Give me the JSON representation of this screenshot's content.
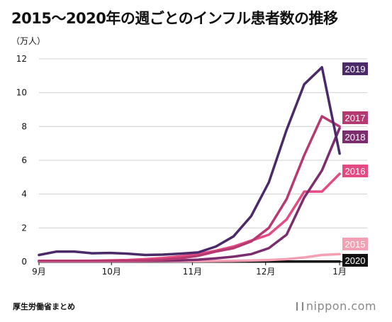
{
  "page": {
    "title": "2015〜2020年の週ごとのインフル患者数の推移",
    "source": "厚生労働省まとめ",
    "brand": "nippon.com"
  },
  "chart_data": {
    "type": "line",
    "title": "2015〜2020年の週ごとのインフル患者数の推移",
    "ylabel": "（万人）",
    "xlabel": "",
    "ylim": [
      0,
      12
    ],
    "yticks": [
      0,
      2,
      4,
      6,
      8,
      10,
      12
    ],
    "xlim": [
      0,
      20
    ],
    "xticks": [
      {
        "label": "9月",
        "x": 0
      },
      {
        "label": "10月",
        "x": 4.7
      },
      {
        "label": "11月",
        "x": 9.95
      },
      {
        "label": "12月",
        "x": 14.7
      },
      {
        "label": "1月",
        "x": 19.5
      }
    ],
    "grid": "horizontal",
    "series": [
      {
        "name": "2019",
        "color": "#4a2a68",
        "values": [
          0.4,
          0.6,
          0.6,
          0.5,
          0.52,
          0.48,
          0.4,
          0.42,
          0.48,
          0.55,
          0.9,
          1.5,
          2.7,
          4.7,
          7.8,
          10.5,
          11.5,
          6.4
        ]
      },
      {
        "name": "2017",
        "color": "#b53a72",
        "values": [
          0.05,
          0.05,
          0.05,
          0.05,
          0.05,
          0.06,
          0.08,
          0.12,
          0.2,
          0.35,
          0.6,
          0.8,
          1.2,
          2.0,
          3.7,
          6.3,
          8.6,
          8.0
        ]
      },
      {
        "name": "2018",
        "color": "#7b2d6e",
        "values": [
          0.05,
          0.05,
          0.05,
          0.05,
          0.05,
          0.05,
          0.05,
          0.06,
          0.08,
          0.12,
          0.2,
          0.3,
          0.45,
          0.8,
          1.6,
          3.8,
          5.4,
          7.9
        ]
      },
      {
        "name": "2016",
        "color": "#e54a82",
        "values": [
          0.05,
          0.05,
          0.05,
          0.06,
          0.08,
          0.1,
          0.15,
          0.22,
          0.32,
          0.45,
          0.65,
          0.9,
          1.25,
          1.6,
          2.5,
          4.15,
          4.15,
          5.2
        ]
      },
      {
        "name": "2015",
        "color": "#f4a0b4",
        "values": [
          0.03,
          0.03,
          0.03,
          0.03,
          0.03,
          0.03,
          0.03,
          0.03,
          0.03,
          0.03,
          0.04,
          0.05,
          0.07,
          0.1,
          0.15,
          0.25,
          0.4,
          0.45
        ]
      },
      {
        "name": "2020",
        "color": "#111111",
        "values": [
          0.01,
          0.01,
          0.01,
          0.01,
          0.01,
          0.01,
          0.01,
          0.01,
          0.01,
          0.01,
          0.01,
          0.01,
          0.01,
          0.01,
          0.01,
          0.01,
          0.01,
          0.01
        ]
      }
    ]
  }
}
